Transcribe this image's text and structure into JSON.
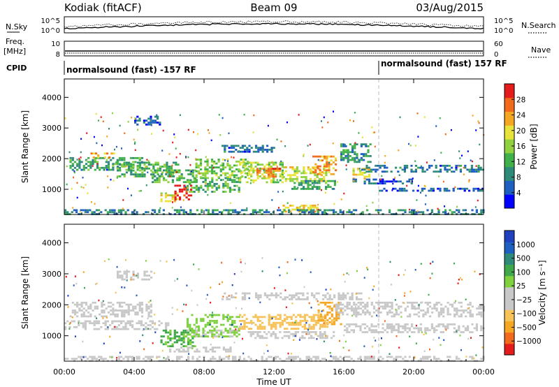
{
  "header": {
    "station": "Kodiak (fitACF)",
    "beam": "Beam 09",
    "date": "03/Aug/2015"
  },
  "top_panels": {
    "nsky_label": "N.Sky",
    "nsky_ticks": [
      "10^5",
      "10^0"
    ],
    "nsearch_label": "N.Search",
    "nsearch_ticks": [
      "10^5",
      "10^0"
    ],
    "freq_label_1": "Freq.",
    "freq_label_2": "[MHz]",
    "freq_ticks": [
      "10",
      "8"
    ],
    "nave_label": "Nave",
    "nave_ticks": [
      "60",
      "0"
    ],
    "cpid_label": "CPID",
    "cpid_segments": [
      {
        "text": "normalsound (fast) -157 RF",
        "start_hour": 0
      },
      {
        "text": "normalsound (fast) 157 RF",
        "start_hour": 18
      }
    ]
  },
  "chart_data": [
    {
      "type": "heatmap",
      "parameter": "power",
      "ylabel": "Slant Range [km]",
      "yticks": [
        1000,
        2000,
        3000,
        4000
      ],
      "ylim": [
        180,
        4600
      ],
      "xlim_hours": [
        0,
        24
      ],
      "colorbar": {
        "label": "Power [dB]",
        "ticks": [
          "28",
          "24",
          "20",
          "16",
          "12",
          "8",
          "4"
        ],
        "colors": [
          "#0000ff",
          "#1f5fbf",
          "#2e8b7a",
          "#3fb04a",
          "#8fd13f",
          "#e8e33a",
          "#f5a623",
          "#f26b1d",
          "#e51c1c"
        ],
        "range": [
          0,
          32
        ]
      },
      "bands": [
        {
          "t0": 0.3,
          "t1": 4.5,
          "r0": 1650,
          "r1": 2050,
          "value": 11
        },
        {
          "t0": 1.5,
          "t1": 3.0,
          "r0": 2050,
          "r1": 2200,
          "value": 24
        },
        {
          "t0": 3.0,
          "t1": 6.5,
          "r0": 1450,
          "r1": 1900,
          "value": 12
        },
        {
          "t0": 5.0,
          "t1": 7.5,
          "r0": 1250,
          "r1": 1650,
          "value": 13
        },
        {
          "t0": 5.5,
          "t1": 6.5,
          "r0": 600,
          "r1": 900,
          "value": 20
        },
        {
          "t0": 6.3,
          "t1": 7.2,
          "r0": 700,
          "r1": 1150,
          "value": 30
        },
        {
          "t0": 7.0,
          "t1": 10.0,
          "r0": 950,
          "r1": 1400,
          "value": 13
        },
        {
          "t0": 7.5,
          "t1": 10.5,
          "r0": 1400,
          "r1": 2000,
          "value": 15
        },
        {
          "t0": 10.0,
          "t1": 12.5,
          "r0": 1250,
          "r1": 1900,
          "value": 17
        },
        {
          "t0": 11.0,
          "t1": 12.3,
          "r0": 1400,
          "r1": 1700,
          "value": 26
        },
        {
          "t0": 12.5,
          "t1": 15.0,
          "r0": 1300,
          "r1": 1750,
          "value": 18
        },
        {
          "t0": 13.0,
          "t1": 15.5,
          "r0": 1000,
          "r1": 1300,
          "value": 11
        },
        {
          "t0": 14.2,
          "t1": 15.6,
          "r0": 1500,
          "r1": 2100,
          "value": 24
        },
        {
          "t0": 15.8,
          "t1": 17.5,
          "r0": 1900,
          "r1": 2500,
          "value": 10
        },
        {
          "t0": 16.5,
          "t1": 17.5,
          "r0": 1350,
          "r1": 1700,
          "value": 21
        },
        {
          "t0": 16.5,
          "t1": 20.0,
          "r0": 1200,
          "r1": 1350,
          "value": 6
        },
        {
          "t0": 17.0,
          "t1": 24.0,
          "r0": 1600,
          "r1": 1800,
          "value": 7
        },
        {
          "t0": 18.0,
          "t1": 24.0,
          "r0": 950,
          "r1": 1050,
          "value": 6
        },
        {
          "t0": 12.5,
          "t1": 14.5,
          "r0": 300,
          "r1": 500,
          "value": 21
        },
        {
          "t0": 0.0,
          "t1": 24.0,
          "r0": 190,
          "r1": 350,
          "value": 9
        },
        {
          "t0": 9.0,
          "t1": 12.0,
          "r0": 2200,
          "r1": 2450,
          "value": 7
        },
        {
          "t0": 4.0,
          "t1": 5.5,
          "r0": 3100,
          "r1": 3400,
          "value": 6
        }
      ]
    },
    {
      "type": "heatmap",
      "parameter": "velocity",
      "ylabel": "Slant Range [km]",
      "xlabel": "Time UT",
      "xticks": [
        "00:00",
        "04:00",
        "08:00",
        "12:00",
        "16:00",
        "20:00",
        "00:00"
      ],
      "yticks": [
        1000,
        2000,
        3000,
        4000
      ],
      "ylim": [
        180,
        4600
      ],
      "xlim_hours": [
        0,
        24
      ],
      "colorbar": {
        "label": "Velocity [m s⁻¹]",
        "ticks": [
          "1000",
          "500",
          "100",
          "25",
          "−25",
          "−100",
          "−500",
          "−1000"
        ],
        "colors": [
          "#e51c1c",
          "#f26b1d",
          "#f5a623",
          "#f5c35a",
          "#c8c8c8",
          "#c8c8c8",
          "#7fd13f",
          "#3fa84a",
          "#2e8b7a",
          "#1f5fbf",
          "#2040c0"
        ],
        "range": [
          -1000,
          1000
        ],
        "ground_scatter_color": "#c8c8c8"
      },
      "bands": [
        {
          "t0": 0.3,
          "t1": 5.0,
          "r0": 1600,
          "r1": 2100,
          "value": 0
        },
        {
          "t0": 0.0,
          "t1": 6.0,
          "r0": 1200,
          "r1": 1500,
          "value": 0
        },
        {
          "t0": 5.5,
          "t1": 7.5,
          "r0": 650,
          "r1": 1200,
          "value": 300
        },
        {
          "t0": 7.0,
          "t1": 10.0,
          "r0": 1000,
          "r1": 1700,
          "value": 200
        },
        {
          "t0": 7.0,
          "t1": 10.0,
          "r0": 1000,
          "r1": 1200,
          "value": 90
        },
        {
          "t0": 10.0,
          "t1": 15.0,
          "r0": 1250,
          "r1": 1700,
          "value": -350
        },
        {
          "t0": 10.5,
          "t1": 15.5,
          "r0": 950,
          "r1": 1150,
          "value": -90
        },
        {
          "t0": 14.5,
          "t1": 15.8,
          "r0": 1400,
          "r1": 2100,
          "value": -500
        },
        {
          "t0": 15.5,
          "t1": 24.0,
          "r0": 1600,
          "r1": 2100,
          "value": 0
        },
        {
          "t0": 16.0,
          "t1": 24.0,
          "r0": 1100,
          "r1": 1400,
          "value": 0
        },
        {
          "t0": 0.0,
          "t1": 24.0,
          "r0": 190,
          "r1": 350,
          "value": -40
        },
        {
          "t0": 6.0,
          "t1": 9.5,
          "r0": 500,
          "r1": 650,
          "value": 0
        },
        {
          "t0": 9.0,
          "t1": 17.0,
          "r0": 2200,
          "r1": 2400,
          "value": 0
        },
        {
          "t0": 3.0,
          "t1": 5.0,
          "r0": 2800,
          "r1": 3100,
          "value": 0
        }
      ]
    }
  ]
}
